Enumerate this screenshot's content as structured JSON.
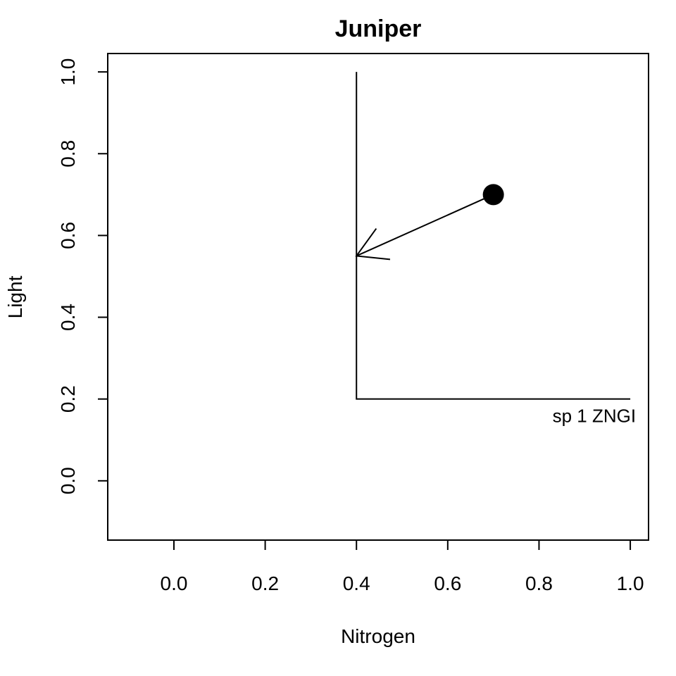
{
  "chart_data": {
    "type": "scatter",
    "title": "Juniper",
    "xlabel": "Nitrogen",
    "ylabel": "Light",
    "xlim": [
      -0.145,
      1.04
    ],
    "ylim": [
      -0.145,
      1.045
    ],
    "xticks": [
      0.0,
      0.2,
      0.4,
      0.6,
      0.8,
      1.0
    ],
    "xtick_labels": [
      "0.0",
      "0.2",
      "0.4",
      "0.6",
      "0.8",
      "1.0"
    ],
    "yticks": [
      0.0,
      0.2,
      0.4,
      0.6,
      0.8,
      1.0
    ],
    "ytick_labels": [
      "0.0",
      "0.2",
      "0.4",
      "0.6",
      "0.8",
      "1.0"
    ],
    "grid": false,
    "zngi": {
      "label": "sp 1 ZNGI",
      "points": [
        [
          0.4,
          1.0
        ],
        [
          0.4,
          0.2
        ],
        [
          1.0,
          0.2
        ]
      ]
    },
    "supply_point": {
      "x": 0.7,
      "y": 0.7
    },
    "consumption_vector": {
      "from": [
        0.7,
        0.7
      ],
      "to": [
        0.4,
        0.55
      ]
    }
  }
}
